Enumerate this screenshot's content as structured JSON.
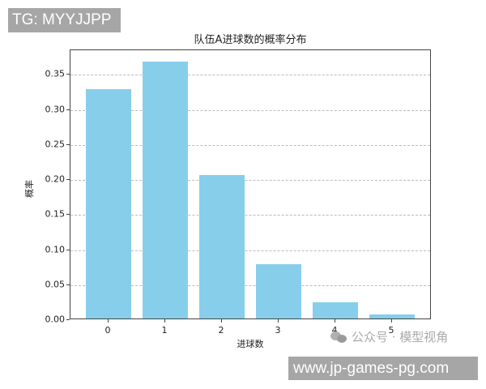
{
  "overlay": {
    "tg_label": "TG: MYYJJPP",
    "url_label": "www.jp-games-pg.com",
    "watermark_text": "公众号 · 模型视角"
  },
  "chart_data": {
    "type": "bar",
    "title": "队伍A进球数的概率分布",
    "xlabel": "进球数",
    "ylabel": "概率",
    "categories": [
      "0",
      "1",
      "2",
      "3",
      "4",
      "5"
    ],
    "values": [
      0.327,
      0.366,
      0.205,
      0.077,
      0.023,
      0.006
    ],
    "ylim": [
      0,
      0.385
    ],
    "yticks": [
      "0.00",
      "0.05",
      "0.10",
      "0.15",
      "0.20",
      "0.25",
      "0.30",
      "0.35"
    ],
    "grid": "y-dashed",
    "bar_color": "#87ceeb",
    "legend": null
  }
}
